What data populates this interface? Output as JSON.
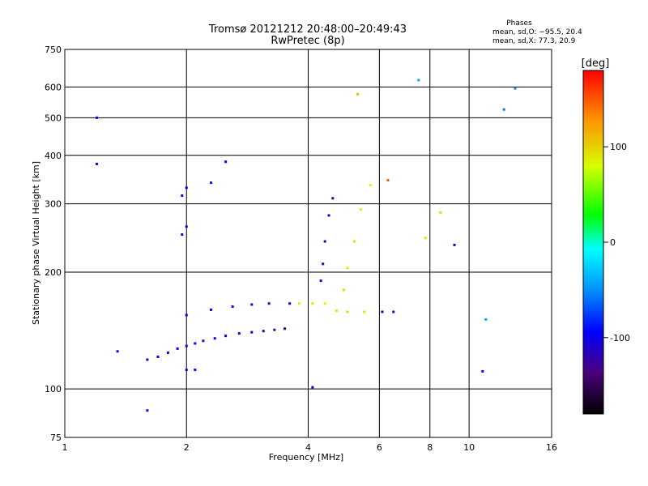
{
  "chart_data": {
    "type": "scatter",
    "title": "Tromsø 20121212 20:48:00–20:49:43",
    "subtitle": "RwPretec (8p)",
    "xlabel": "Frequency [MHz]",
    "ylabel": "Stationary phase Virtual Height [km]",
    "xscale": "log",
    "yscale": "log",
    "xlim": [
      1,
      16
    ],
    "ylim": [
      75,
      750
    ],
    "xticks": [
      1,
      2,
      4,
      6,
      8,
      10,
      16
    ],
    "xtick_labels": [
      "1",
      "2",
      "4",
      "6",
      "8",
      "10",
      "16"
    ],
    "yticks": [
      75,
      100,
      200,
      300,
      400,
      500,
      600,
      750
    ],
    "ytick_labels": [
      "75",
      "100",
      "200",
      "300",
      "400",
      "500",
      "600",
      "750"
    ],
    "grid": true,
    "legend": {
      "title": "Phases",
      "lines": [
        "mean, sd,O: −95.5, 20.4",
        "mean, sd,X:  77.3, 20.9"
      ],
      "placement": "top-right"
    },
    "colorbar": {
      "label": "[deg]",
      "range": [
        -180,
        180
      ],
      "ticks": [
        100,
        0,
        -100
      ],
      "tick_labels": [
        "100",
        "0",
        "-100"
      ]
    },
    "series": [
      {
        "values": [
          {
            "x": 1.6,
            "y": 119,
            "p": -105
          },
          {
            "x": 1.7,
            "y": 121,
            "p": -98
          },
          {
            "x": 1.8,
            "y": 124,
            "p": -110
          },
          {
            "x": 1.9,
            "y": 127,
            "p": -92
          },
          {
            "x": 2.0,
            "y": 129,
            "p": -100
          },
          {
            "x": 2.1,
            "y": 131,
            "p": -96
          },
          {
            "x": 2.2,
            "y": 133,
            "p": -108
          },
          {
            "x": 2.35,
            "y": 135,
            "p": -94
          },
          {
            "x": 2.5,
            "y": 137,
            "p": -102
          },
          {
            "x": 2.7,
            "y": 139,
            "p": -99
          },
          {
            "x": 2.9,
            "y": 140,
            "p": -112
          },
          {
            "x": 3.1,
            "y": 141,
            "p": -120
          },
          {
            "x": 3.3,
            "y": 142,
            "p": -125
          },
          {
            "x": 3.5,
            "y": 143,
            "p": -118
          },
          {
            "x": 2.0,
            "y": 155,
            "p": -95
          },
          {
            "x": 2.3,
            "y": 160,
            "p": -100
          },
          {
            "x": 2.6,
            "y": 163,
            "p": -92
          },
          {
            "x": 2.9,
            "y": 165,
            "p": -110
          },
          {
            "x": 3.2,
            "y": 166,
            "p": -122
          },
          {
            "x": 3.6,
            "y": 166,
            "p": -100
          },
          {
            "x": 3.8,
            "y": 166,
            "p": 85
          },
          {
            "x": 4.1,
            "y": 166,
            "p": 90
          },
          {
            "x": 4.4,
            "y": 166,
            "p": 82
          },
          {
            "x": 4.7,
            "y": 159,
            "p": 88
          },
          {
            "x": 5.0,
            "y": 158,
            "p": 95
          },
          {
            "x": 5.5,
            "y": 158,
            "p": 86
          },
          {
            "x": 6.1,
            "y": 158,
            "p": -120
          },
          {
            "x": 6.5,
            "y": 158,
            "p": -115
          },
          {
            "x": 1.95,
            "y": 250,
            "p": -110
          },
          {
            "x": 2.0,
            "y": 262,
            "p": -100
          },
          {
            "x": 1.95,
            "y": 315,
            "p": -95
          },
          {
            "x": 2.0,
            "y": 330,
            "p": -98
          },
          {
            "x": 2.3,
            "y": 340,
            "p": -88
          },
          {
            "x": 2.5,
            "y": 385,
            "p": -92
          },
          {
            "x": 2.0,
            "y": 112,
            "p": -105
          },
          {
            "x": 2.1,
            "y": 112,
            "p": -100
          },
          {
            "x": 4.3,
            "y": 190,
            "p": -105
          },
          {
            "x": 4.35,
            "y": 210,
            "p": -112
          },
          {
            "x": 4.4,
            "y": 240,
            "p": -118
          },
          {
            "x": 4.5,
            "y": 280,
            "p": -108
          },
          {
            "x": 4.6,
            "y": 310,
            "p": -120
          },
          {
            "x": 4.9,
            "y": 180,
            "p": 90
          },
          {
            "x": 5.0,
            "y": 205,
            "p": 85
          },
          {
            "x": 5.2,
            "y": 240,
            "p": 95
          },
          {
            "x": 5.4,
            "y": 290,
            "p": 80
          },
          {
            "x": 5.7,
            "y": 335,
            "p": 75
          },
          {
            "x": 7.8,
            "y": 245,
            "p": 70
          },
          {
            "x": 8.5,
            "y": 285,
            "p": 65
          },
          {
            "x": 9.2,
            "y": 235,
            "p": -130
          },
          {
            "x": 1.2,
            "y": 500,
            "p": -105
          },
          {
            "x": 1.2,
            "y": 380,
            "p": -100
          },
          {
            "x": 1.35,
            "y": 125,
            "p": -90
          },
          {
            "x": 1.6,
            "y": 88,
            "p": -110
          },
          {
            "x": 4.1,
            "y": 101,
            "p": -120
          },
          {
            "x": 10.8,
            "y": 111,
            "p": -95
          },
          {
            "x": 11.0,
            "y": 151,
            "p": -40
          },
          {
            "x": 12.2,
            "y": 525,
            "p": -60
          },
          {
            "x": 7.5,
            "y": 625,
            "p": -40
          },
          {
            "x": 13.0,
            "y": 595,
            "p": -50
          },
          {
            "x": 5.3,
            "y": 575,
            "p": 110
          },
          {
            "x": 6.3,
            "y": 345,
            "p": 150
          }
        ]
      }
    ]
  }
}
